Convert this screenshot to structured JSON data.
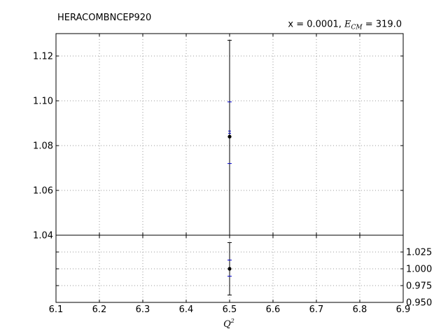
{
  "chart_data": [
    {
      "panel": "main",
      "type": "scatter",
      "title": "HERACOMBNCEP920",
      "annotation": {
        "prefix": "x = 0.0001, ",
        "var": "E",
        "sub": "CM",
        "suffix": " = 319.0"
      },
      "xlabel": "",
      "ylabel": "",
      "xlim": [
        6.1,
        6.9
      ],
      "ylim": [
        1.04,
        1.13
      ],
      "xticks": [
        "6.1",
        "6.2",
        "6.3",
        "6.4",
        "6.5",
        "6.6",
        "6.7",
        "6.8",
        "6.9"
      ],
      "xtick_values": [
        6.1,
        6.2,
        6.3,
        6.4,
        6.5,
        6.6,
        6.7,
        6.8,
        6.9
      ],
      "yticks": [
        "1.04",
        "1.06",
        "1.08",
        "1.10",
        "1.12"
      ],
      "ytick_values": [
        1.04,
        1.06,
        1.08,
        1.1,
        1.12
      ],
      "grid": true,
      "points": [
        {
          "x": 6.5,
          "y": 1.084,
          "err_outer": [
            1.04,
            1.127
          ],
          "err_blue": [
            1.072,
            1.0995
          ],
          "err_blue_small": [
            1.0855,
            1.0865
          ]
        }
      ],
      "colors": {
        "point": "#000000",
        "outer_error": "#000000",
        "inner_error": "#0000cc",
        "grid": "#999999"
      }
    },
    {
      "panel": "ratio",
      "type": "scatter",
      "xlabel": "Q",
      "xlabel_sup": "2",
      "xlim": [
        6.1,
        6.9
      ],
      "ylim": [
        0.95,
        1.05
      ],
      "xticks": [
        "6.1",
        "6.2",
        "6.3",
        "6.4",
        "6.5",
        "6.6",
        "6.7",
        "6.8",
        "6.9"
      ],
      "xtick_values": [
        6.1,
        6.2,
        6.3,
        6.4,
        6.5,
        6.6,
        6.7,
        6.8,
        6.9
      ],
      "yticks": [
        "0.950",
        "0.975",
        "1.000",
        "1.025"
      ],
      "ytick_values": [
        0.95,
        0.975,
        1.0,
        1.025
      ],
      "ytick_side": "right",
      "grid": true,
      "points": [
        {
          "x": 6.5,
          "y": 1.0,
          "err_outer": [
            0.961,
            1.039
          ],
          "err_blue": [
            0.989,
            1.013
          ]
        }
      ],
      "colors": {
        "point": "#000000",
        "outer_error": "#000000",
        "inner_error": "#0000cc",
        "grid": "#999999"
      }
    }
  ]
}
